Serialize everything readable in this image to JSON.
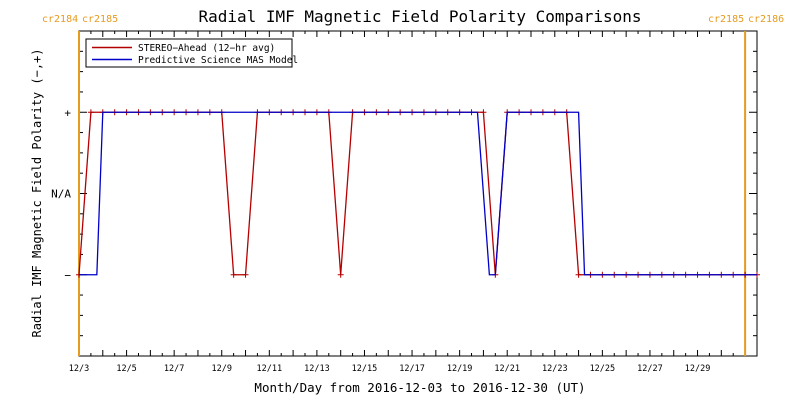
{
  "chart_data": {
    "type": "line",
    "title": "Radial IMF Magnetic Field Polarity Comparisons",
    "xlabel": "Month/Day from 2016-12-03 to 2016-12-30 (UT)",
    "ylabel": "Radial IMF Magnetic Field Polarity (−,+)",
    "x_range": [
      "2016-12-03T00:00",
      "2016-12-31T12:00"
    ],
    "x_tick_labels": [
      "12/3",
      "12/5",
      "12/7",
      "12/9",
      "12/11",
      "12/13",
      "12/15",
      "12/17",
      "12/19",
      "12/21",
      "12/23",
      "12/25",
      "12/27",
      "12/29"
    ],
    "y_tick_labels": [
      "+",
      "N/A",
      "−"
    ],
    "y_range": [
      -2,
      2
    ],
    "carrington_left": [
      "cr2184",
      "cr2185"
    ],
    "carrington_right": [
      "cr2185",
      "cr2186"
    ],
    "carrington_line_dates": [
      "2016-12-03T00:00",
      "2016-12-31T00:00"
    ],
    "colors": {
      "stereo": "#b40000",
      "model": "#0000c8",
      "carrington": "#e69b1e"
    },
    "legend_position": "top-left",
    "series": [
      {
        "name": "STEREO−Ahead (12−hr avg)",
        "color": "#b40000",
        "points": [
          [
            "2016-12-03T00:00",
            -1
          ],
          [
            "2016-12-03T12:00",
            1
          ],
          [
            "2016-12-04T00:00",
            1
          ],
          [
            "2016-12-04T12:00",
            1
          ],
          [
            "2016-12-05T00:00",
            1
          ],
          [
            "2016-12-05T12:00",
            1
          ],
          [
            "2016-12-06T00:00",
            1
          ],
          [
            "2016-12-06T12:00",
            1
          ],
          [
            "2016-12-07T00:00",
            1
          ],
          [
            "2016-12-07T12:00",
            1
          ],
          [
            "2016-12-08T00:00",
            1
          ],
          [
            "2016-12-08T12:00",
            1
          ],
          [
            "2016-12-09T00:00",
            1
          ],
          [
            "2016-12-09T12:00",
            -1
          ],
          [
            "2016-12-10T00:00",
            -1
          ],
          [
            "2016-12-10T12:00",
            1
          ],
          [
            "2016-12-11T00:00",
            1
          ],
          [
            "2016-12-11T12:00",
            1
          ],
          [
            "2016-12-12T00:00",
            1
          ],
          [
            "2016-12-12T12:00",
            1
          ],
          [
            "2016-12-13T00:00",
            1
          ],
          [
            "2016-12-13T12:00",
            1
          ],
          [
            "2016-12-14T00:00",
            -1
          ],
          [
            "2016-12-14T12:00",
            1
          ],
          [
            "2016-12-15T00:00",
            1
          ],
          [
            "2016-12-15T12:00",
            1
          ],
          [
            "2016-12-16T00:00",
            1
          ],
          [
            "2016-12-16T12:00",
            1
          ],
          [
            "2016-12-17T00:00",
            1
          ],
          [
            "2016-12-17T12:00",
            1
          ],
          [
            "2016-12-18T00:00",
            1
          ],
          [
            "2016-12-18T12:00",
            1
          ],
          [
            "2016-12-19T00:00",
            1
          ],
          [
            "2016-12-19T12:00",
            1
          ],
          [
            "2016-12-20T00:00",
            1
          ],
          [
            "2016-12-20T12:00",
            -1
          ],
          [
            "2016-12-21T00:00",
            1
          ],
          [
            "2016-12-21T12:00",
            1
          ],
          [
            "2016-12-22T00:00",
            1
          ],
          [
            "2016-12-22T12:00",
            1
          ],
          [
            "2016-12-23T00:00",
            1
          ],
          [
            "2016-12-23T12:00",
            1
          ],
          [
            "2016-12-24T00:00",
            -1
          ],
          [
            "2016-12-24T12:00",
            -1
          ],
          [
            "2016-12-25T00:00",
            -1
          ],
          [
            "2016-12-25T12:00",
            -1
          ],
          [
            "2016-12-26T00:00",
            -1
          ],
          [
            "2016-12-26T12:00",
            -1
          ],
          [
            "2016-12-27T00:00",
            -1
          ],
          [
            "2016-12-27T12:00",
            -1
          ],
          [
            "2016-12-28T00:00",
            -1
          ],
          [
            "2016-12-28T12:00",
            -1
          ],
          [
            "2016-12-29T00:00",
            -1
          ],
          [
            "2016-12-29T12:00",
            -1
          ],
          [
            "2016-12-30T00:00",
            -1
          ],
          [
            "2016-12-30T12:00",
            -1
          ],
          [
            "2016-12-31T00:00",
            -1
          ],
          [
            "2016-12-31T12:00",
            -1
          ]
        ]
      },
      {
        "name": "Predictive Science MAS Model",
        "color": "#0000c8",
        "points": [
          [
            "2016-12-03T00:00",
            -1
          ],
          [
            "2016-12-03T18:00",
            -1
          ],
          [
            "2016-12-04T00:00",
            1
          ],
          [
            "2016-12-19T18:00",
            1
          ],
          [
            "2016-12-20T06:00",
            -1
          ],
          [
            "2016-12-20T12:00",
            -1
          ],
          [
            "2016-12-21T00:00",
            1
          ],
          [
            "2016-12-24T00:00",
            1
          ],
          [
            "2016-12-24T06:00",
            -1
          ],
          [
            "2016-12-31T12:00",
            -1
          ]
        ]
      }
    ]
  }
}
